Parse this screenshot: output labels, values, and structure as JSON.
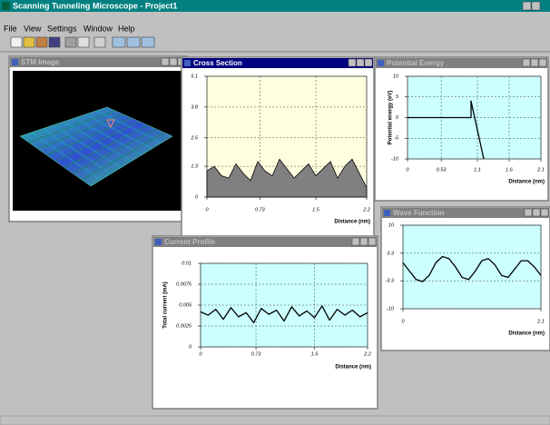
{
  "app": {
    "title": "Scanning Tunneling Microscope - Project1",
    "menu": [
      "File",
      "View",
      "Settings",
      "Window",
      "Help"
    ]
  },
  "windows": [
    {
      "title": "STM Image"
    },
    {
      "title": "Potential Energy",
      "chart": {
        "type": "line",
        "ylabel": "Potential energy (eV)",
        "xlabel": "Distance (nm)",
        "xlim": [
          0,
          2.1
        ],
        "ylim": [
          -10,
          10
        ],
        "xticks": [
          0,
          0.53,
          1.1,
          1.6,
          2.1
        ],
        "yticks": [
          10,
          5,
          0,
          -5,
          -10
        ],
        "grid": true,
        "background": "#ccffff",
        "x": [
          0,
          1.0,
          1.0,
          1.2
        ],
        "series": [
          {
            "color": "#000000",
            "values": [
              0,
              0,
              4,
              -10
            ]
          }
        ]
      }
    },
    {
      "title": "Wave Function",
      "chart": {
        "type": "line",
        "xlabel": "Distance (nm)",
        "xlim": [
          0,
          2.1
        ],
        "ylim": [
          -10,
          10
        ],
        "xticks": [
          0,
          2.1
        ],
        "yticks": [
          10,
          3.3,
          -3.3,
          -10
        ],
        "grid": true,
        "background": "#ccffff",
        "x": [
          0,
          0.1,
          0.2,
          0.3,
          0.4,
          0.5,
          0.6,
          0.7,
          0.8,
          0.9,
          1.0,
          1.1,
          1.2,
          1.3,
          1.4,
          1.5,
          1.6,
          1.7,
          1.8,
          1.9,
          2.0,
          2.1
        ],
        "series": [
          {
            "color": "#000000",
            "values": [
              1,
              -1,
              -3,
              -3.5,
              -2,
              1,
              2.5,
              2,
              0,
              -2.5,
              -3,
              -1,
              1.5,
              2,
              0.5,
              -2,
              -2.5,
              -0.5,
              1.5,
              1.5,
              0,
              -2
            ]
          }
        ]
      }
    },
    {
      "title": "Cross Section",
      "chart": {
        "type": "area",
        "xlabel": "Distance (nm)",
        "xlim": [
          0,
          2.2
        ],
        "ylim": [
          0,
          5.1
        ],
        "xticks": [
          0,
          0.73,
          1.5,
          2.2
        ],
        "yticks": [
          5.1,
          3.8,
          2.5,
          1.3,
          0
        ],
        "grid": true,
        "background": "#ffffe0",
        "x": [
          0,
          0.1,
          0.2,
          0.3,
          0.4,
          0.5,
          0.6,
          0.7,
          0.8,
          0.9,
          1.0,
          1.1,
          1.2,
          1.3,
          1.4,
          1.5,
          1.6,
          1.7,
          1.8,
          1.9,
          2.0,
          2.1,
          2.2
        ],
        "series": [
          {
            "color": "#808080",
            "values": [
              1.1,
              1.3,
              0.9,
              0.8,
              1.4,
              1.0,
              0.7,
              1.5,
              1.1,
              0.9,
              1.6,
              1.2,
              0.8,
              1.1,
              1.4,
              0.9,
              1.2,
              1.5,
              0.8,
              1.3,
              1.6,
              1.0,
              0.4
            ]
          }
        ]
      }
    },
    {
      "title": "Current Profile",
      "chart": {
        "type": "line",
        "ylabel": "Total current (mA)",
        "xlabel": "Distance (nm)",
        "xlim": [
          0,
          2.2
        ],
        "ylim": [
          0,
          0.01
        ],
        "xticks": [
          0,
          0.73,
          1.5,
          2.2
        ],
        "yticks": [
          0.01,
          0.0075,
          0.005,
          0.0025,
          0
        ],
        "grid": true,
        "background": "#ccffff",
        "x": [
          0,
          0.1,
          0.2,
          0.3,
          0.4,
          0.5,
          0.6,
          0.7,
          0.8,
          0.9,
          1.0,
          1.1,
          1.2,
          1.3,
          1.4,
          1.5,
          1.6,
          1.7,
          1.8,
          1.9,
          2.0,
          2.1,
          2.2
        ],
        "series": [
          {
            "color": "#000000",
            "values": [
              0.0042,
              0.0038,
              0.0045,
              0.0033,
              0.0047,
              0.0036,
              0.0041,
              0.0029,
              0.0046,
              0.0039,
              0.0044,
              0.0031,
              0.0048,
              0.0037,
              0.0043,
              0.0035,
              0.0049,
              0.0032,
              0.0045,
              0.0038,
              0.0044,
              0.0036,
              0.0041
            ]
          }
        ]
      }
    }
  ]
}
